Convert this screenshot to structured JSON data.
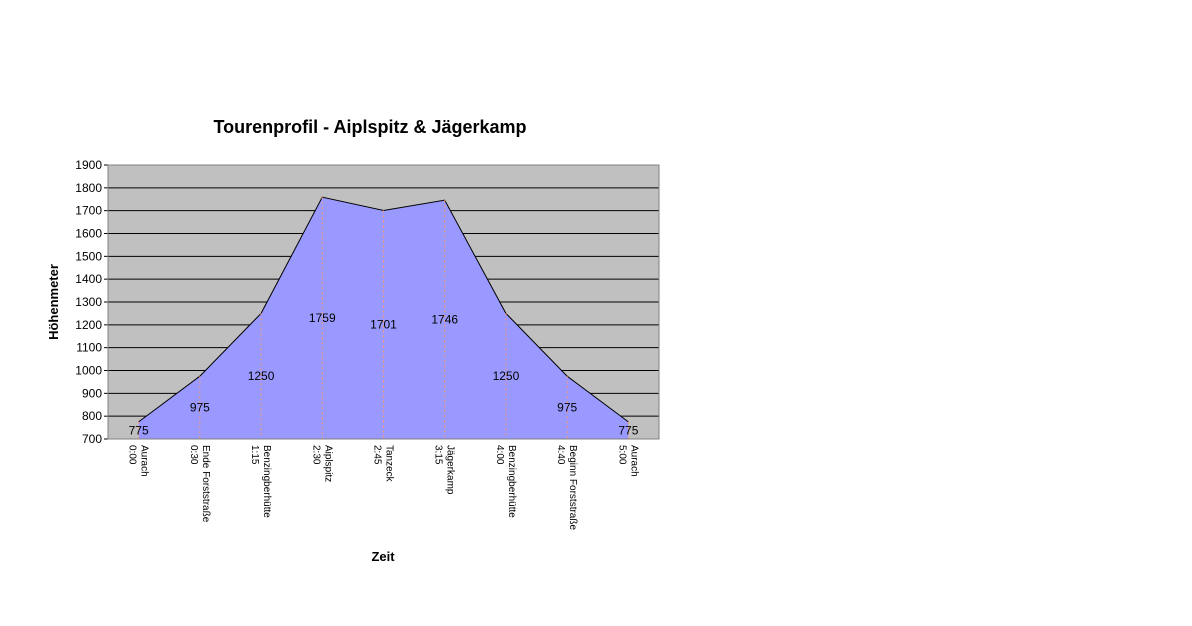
{
  "chart_data": {
    "type": "area",
    "title": "Tourenprofil - Aiplspitz & Jägerkamp",
    "xlabel": "Zeit",
    "ylabel": "Höhenmeter",
    "ylim": [
      700,
      1900
    ],
    "ytick_step": 100,
    "grid": true,
    "legend": "none",
    "categories": [
      {
        "name": "Aurach",
        "time": "0:00"
      },
      {
        "name": "Ende Forststraße",
        "time": "0:30"
      },
      {
        "name": "Benzingberhütte",
        "time": "1:15"
      },
      {
        "name": "Aiplspitz",
        "time": "2:30"
      },
      {
        "name": "Tanzeck",
        "time": "2:45"
      },
      {
        "name": "Jägerkamp",
        "time": "3:15"
      },
      {
        "name": "Benzingberhütte",
        "time": "4:00"
      },
      {
        "name": "Beginn Forststraße",
        "time": "4:40"
      },
      {
        "name": "Aurach",
        "time": "5:00"
      }
    ],
    "values": [
      775,
      975,
      1250,
      1759,
      1701,
      1746,
      1250,
      975,
      775
    ],
    "data_labels": [
      "775",
      "975",
      "1250",
      "1759",
      "1701",
      "1746",
      "1250",
      "975",
      "775"
    ],
    "colors": {
      "plot_bg": "#c0c0c0",
      "area_fill": "#9999ff",
      "area_stroke": "#000000",
      "drop_lines": "#ff9966",
      "grid": "#000000"
    }
  }
}
